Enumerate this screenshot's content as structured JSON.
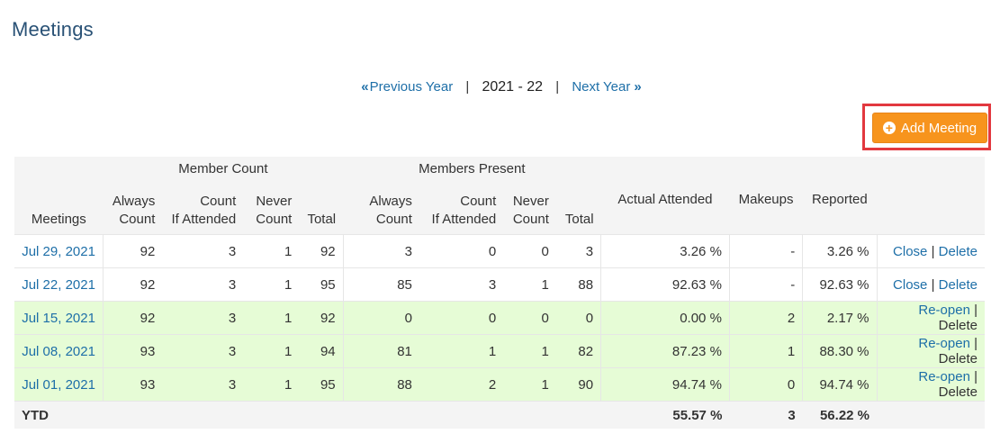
{
  "page_title": "Meetings",
  "year_nav": {
    "previous": "Previous Year",
    "current": "2021 - 22",
    "next": "Next Year"
  },
  "add_button": "Add Meeting",
  "table": {
    "group_headers": {
      "member_count": "Member Count",
      "members_present": "Members Present"
    },
    "columns": {
      "meetings": "Meetings",
      "always_count": [
        "Always",
        "Count"
      ],
      "count_if_attended": [
        "Count",
        "If Attended"
      ],
      "never_count": [
        "Never",
        "Count"
      ],
      "total": "Total",
      "actual_attended": "Actual Attended",
      "makeups": "Makeups",
      "reported": "Reported"
    },
    "rows": [
      {
        "date": "Jul 29, 2021",
        "mc_always": "92",
        "mc_if": "3",
        "mc_never": "1",
        "mc_total": "92",
        "mp_always": "3",
        "mp_if": "0",
        "mp_never": "0",
        "mp_total": "3",
        "actual": "3.26 %",
        "makeups": "-",
        "reported": "3.26 %",
        "action": "Close",
        "delete": "Delete"
      },
      {
        "date": "Jul 22, 2021",
        "mc_always": "92",
        "mc_if": "3",
        "mc_never": "1",
        "mc_total": "95",
        "mp_always": "85",
        "mp_if": "3",
        "mp_never": "1",
        "mp_total": "88",
        "actual": "92.63 %",
        "makeups": "-",
        "reported": "92.63 %",
        "action": "Close",
        "delete": "Delete"
      },
      {
        "date": "Jul 15, 2021",
        "mc_always": "92",
        "mc_if": "3",
        "mc_never": "1",
        "mc_total": "92",
        "mp_always": "0",
        "mp_if": "0",
        "mp_never": "0",
        "mp_total": "0",
        "actual": "0.00 %",
        "makeups": "2",
        "reported": "2.17 %",
        "action": "Re-open",
        "delete": "Delete"
      },
      {
        "date": "Jul 08, 2021",
        "mc_always": "93",
        "mc_if": "3",
        "mc_never": "1",
        "mc_total": "94",
        "mp_always": "81",
        "mp_if": "1",
        "mp_never": "1",
        "mp_total": "82",
        "actual": "87.23 %",
        "makeups": "1",
        "reported": "88.30 %",
        "action": "Re-open",
        "delete": "Delete"
      },
      {
        "date": "Jul 01, 2021",
        "mc_always": "93",
        "mc_if": "3",
        "mc_never": "1",
        "mc_total": "95",
        "mp_always": "88",
        "mp_if": "2",
        "mp_never": "1",
        "mp_total": "90",
        "actual": "94.74 %",
        "makeups": "0",
        "reported": "94.74 %",
        "action": "Re-open",
        "delete": "Delete"
      }
    ],
    "ytd": {
      "label": "YTD",
      "actual": "55.57 %",
      "makeups": "3",
      "reported": "56.22 %"
    }
  },
  "colors": {
    "title": "#2a5276",
    "link": "#1e6fa8",
    "button": "#f7941d",
    "highlight": "#e2383f",
    "closed_row": "#e6fcd6"
  }
}
